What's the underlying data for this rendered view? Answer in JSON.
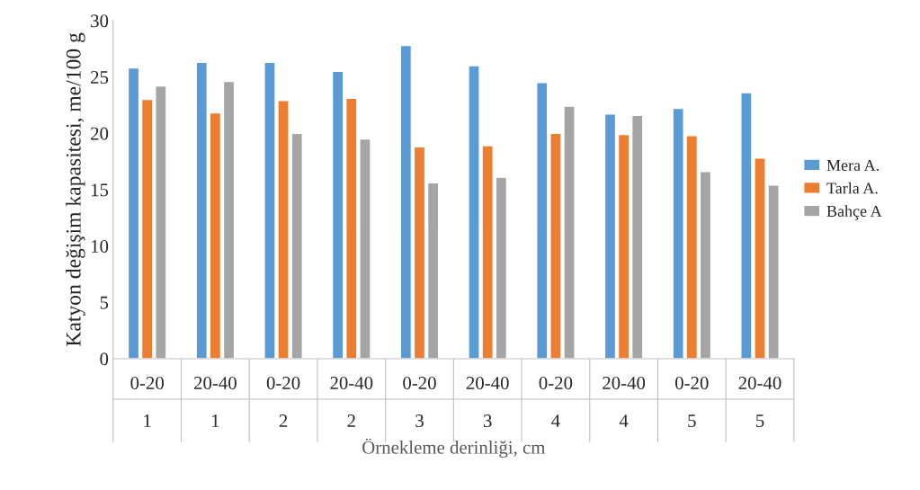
{
  "chart_data": {
    "type": "bar",
    "xlabel": "Örnekleme derinliği, cm",
    "ylabel": "Katyon değişim kapasitesi, me/100 g",
    "categories": [
      "0-20\n1",
      "20-40\n1",
      "0-20\n2",
      "20-40\n2",
      "0-20\n3",
      "20-40\n3",
      "0-20\n4",
      "20-40\n4",
      "0-20\n5",
      "20-40\n5"
    ],
    "series": [
      {
        "name": "Mera A.",
        "color": "#5b9bd5",
        "values": [
          25.8,
          26.3,
          26.3,
          25.5,
          27.8,
          26.0,
          24.5,
          21.7,
          22.2,
          23.6
        ]
      },
      {
        "name": "Tarla A.",
        "color": "#ed7d31",
        "values": [
          23.0,
          21.8,
          22.9,
          23.1,
          18.8,
          18.9,
          20.0,
          19.9,
          19.8,
          17.8
        ]
      },
      {
        "name": "Bahçe A",
        "color": "#a5a5a5",
        "values": [
          24.2,
          24.6,
          20.0,
          19.5,
          15.6,
          16.1,
          22.4,
          21.6,
          16.6,
          15.4
        ]
      }
    ],
    "ylim": [
      0,
      30
    ],
    "yticks": [
      0,
      5,
      10,
      15,
      20,
      25,
      30
    ],
    "grid": false,
    "legend": "right"
  }
}
